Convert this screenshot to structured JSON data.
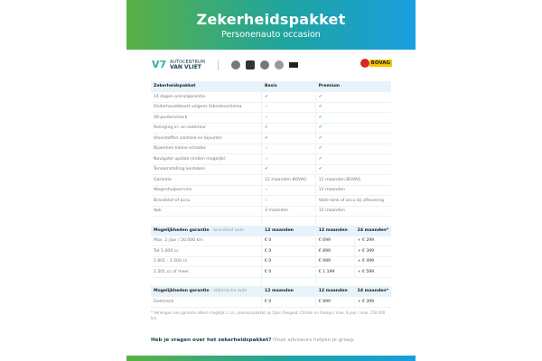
{
  "header": {
    "title": "Zekerheidspakket",
    "subtitle": "Personenauto occasion"
  },
  "logos": {
    "dealer_line1": "AUTOCENTRUM",
    "dealer_line2": "VAN VLIET",
    "bovag": "BOVAG"
  },
  "package_table": {
    "headers": [
      "Zekerheidspakket",
      "Basis",
      "Premium"
    ],
    "rows": [
      [
        "14 dagen omruilgarantie",
        "check",
        "check"
      ],
      [
        "Onderhoudsbeurt volgens fabrieksschema",
        "cross",
        "check"
      ],
      [
        "40-puntencheck",
        "cross",
        "check"
      ],
      [
        "Reiniging in- en exterieur",
        "check",
        "check"
      ],
      [
        "Vloeistoffen controle en bijvullen",
        "check",
        "check"
      ],
      [
        "Bijwerken kleine schades",
        "cross",
        "check"
      ],
      [
        "Navigatie update (indien mogelijk)",
        "cross",
        "check"
      ],
      [
        "Tenaamstelling kenteken",
        "check",
        "check"
      ],
      [
        "Garantie",
        "12 maanden BOVAG",
        "12 maanden BOVAG"
      ],
      [
        "Wegenhulpservice",
        "cross",
        "12 maanden"
      ],
      [
        "Brandstof of accu",
        "cross",
        "Volle tank of accu bij aflevering"
      ],
      [
        "Apk",
        "3 maanden",
        "12 maanden"
      ]
    ]
  },
  "fuel_table": {
    "title": "Mogelijkheden garantie",
    "subtitle": "- brandstof auto",
    "headers": [
      "12 maanden",
      "12 maanden",
      "24 maanden*"
    ],
    "rows": [
      [
        "Max. 2 jaar / 50.000 km",
        "€ 0",
        "€ 699",
        "+ € 299"
      ],
      [
        "Tot 1.000 cc",
        "€ 0",
        "€ 899",
        "+ € 399"
      ],
      [
        "1.001 - 1.500 cc",
        "€ 0",
        "€ 999",
        "+ € 499"
      ],
      [
        "1.501 cc of meer",
        "€ 0",
        "€ 1.199",
        "+ € 599"
      ]
    ]
  },
  "electric_table": {
    "title": "Mogelijkheden garantie",
    "subtitle": "- elektrische auto",
    "headers": [
      "12 maanden",
      "12 maanden",
      "24 maanden*"
    ],
    "rows": [
      [
        "Elektrisch",
        "€ 0",
        "€ 899",
        "+ € 399"
      ]
    ]
  },
  "footnote": "* Verlengen van garantie alleen mogelijk i.c.m. premiumpakket op Opel, Peugeot, Citroën en Aiways / max. 8 jaar / max. 150.000 km.",
  "question": {
    "bold": "Heb je vragen over het zekerheidspakket?",
    "text": "Onze adviseurs helpen je graag."
  },
  "icons": {
    "check": "✔",
    "cross": "×"
  }
}
